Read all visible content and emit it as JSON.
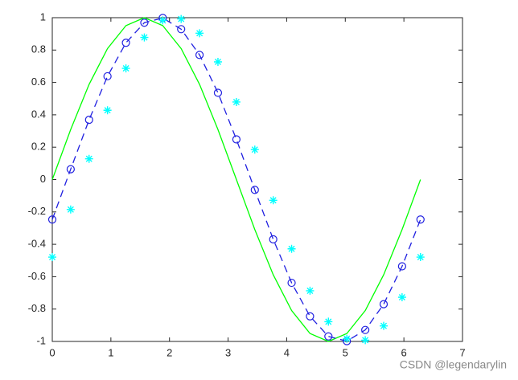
{
  "chart_data": {
    "type": "line",
    "x": [
      0,
      0.314,
      0.628,
      0.942,
      1.257,
      1.571,
      1.885,
      2.199,
      2.513,
      2.827,
      3.142,
      3.456,
      3.77,
      4.084,
      4.398,
      4.712,
      5.027,
      5.341,
      5.655,
      5.969,
      6.283
    ],
    "series": [
      {
        "color": "#00ff00",
        "linestyle": "solid",
        "marker": "none",
        "values": [
          0,
          0.309,
          0.588,
          0.809,
          0.951,
          1,
          0.951,
          0.809,
          0.588,
          0.309,
          0,
          -0.309,
          -0.588,
          -0.809,
          -0.951,
          -1,
          -0.951,
          -0.809,
          -0.588,
          -0.309,
          0
        ]
      },
      {
        "color": "#2020e0",
        "linestyle": "dashed",
        "marker": "circle",
        "values": [
          -0.247,
          0.064,
          0.369,
          0.638,
          0.845,
          0.969,
          0.998,
          0.929,
          0.77,
          0.536,
          0.248,
          -0.064,
          -0.369,
          -0.638,
          -0.845,
          -0.969,
          -0.998,
          -0.929,
          -0.77,
          -0.536,
          -0.247
        ]
      },
      {
        "color": "#00ffff",
        "linestyle": "none",
        "marker": "star",
        "values": [
          -0.479,
          -0.185,
          0.128,
          0.428,
          0.687,
          0.878,
          0.983,
          0.992,
          0.904,
          0.727,
          0.479,
          0.185,
          -0.128,
          -0.428,
          -0.687,
          -0.878,
          -0.983,
          -0.992,
          -0.904,
          -0.727,
          -0.479
        ]
      }
    ],
    "xlim": [
      0,
      7
    ],
    "xticks": [
      0,
      1,
      2,
      3,
      4,
      5,
      6,
      7
    ],
    "ylim": [
      -1,
      1
    ],
    "yticks": [
      -1,
      -0.8,
      -0.6,
      -0.4,
      -0.2,
      0,
      0.2,
      0.4,
      0.6,
      0.8,
      1
    ],
    "grid": false,
    "box": true
  },
  "watermark": "CSDN @legendarylin"
}
